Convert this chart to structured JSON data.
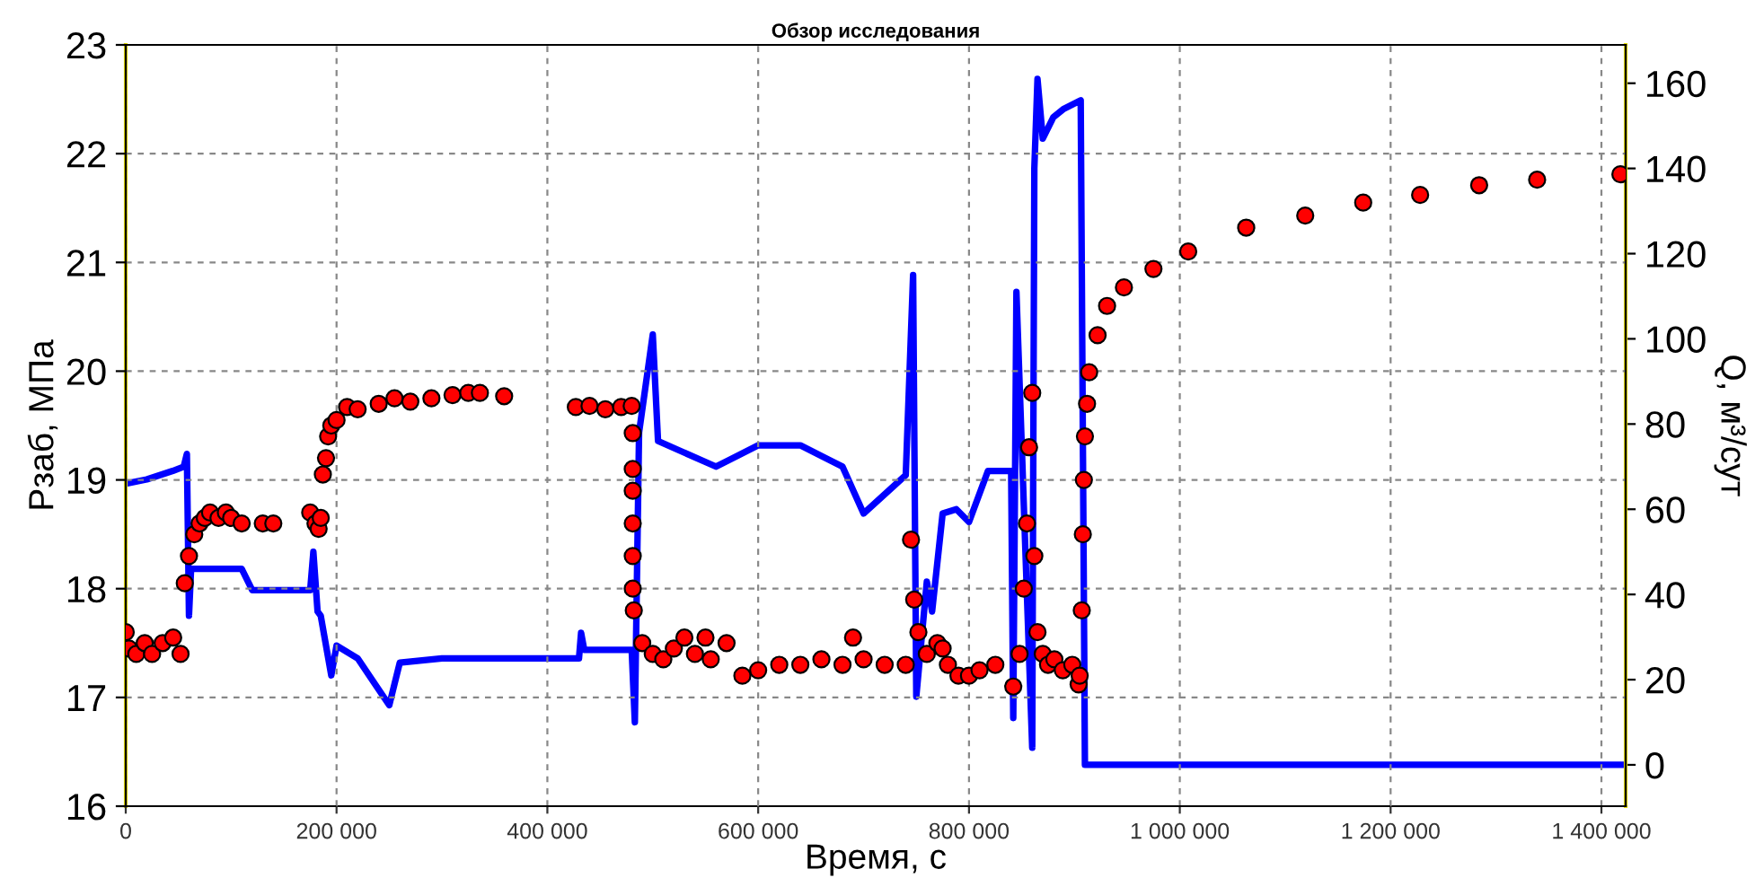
{
  "chart_data": {
    "type": "scatter",
    "title": "Обзор исследования",
    "xlabel": "Время, с",
    "ylabel": "Pзаб, МПа",
    "y2label": "Q, м³/сут",
    "xlim": [
      0,
      1423000
    ],
    "ylim": [
      16,
      23
    ],
    "y2lim": [
      -9.7,
      169
    ],
    "xticks": [
      0,
      {
        "value": 200000,
        "label": "200 000"
      },
      {
        "value": 400000,
        "label": "400 000"
      },
      {
        "value": 600000,
        "label": "600 000"
      },
      {
        "value": 800000,
        "label": "800 000"
      },
      {
        "value": 1000000,
        "label": "1 000 000"
      },
      {
        "value": 1200000,
        "label": "1 200 000"
      },
      {
        "value": 1400000,
        "label": "1 400 000"
      }
    ],
    "yticks": [
      16,
      17,
      18,
      19,
      20,
      21,
      22,
      23
    ],
    "y2ticks": [
      0,
      20,
      40,
      60,
      80,
      100,
      120,
      140,
      160
    ],
    "grid": true,
    "legend": false,
    "series": [
      {
        "axis": "y",
        "color": "#ff0000",
        "marker": "circle",
        "x": [
          0,
          3000,
          10000,
          18000,
          25000,
          35000,
          45000,
          52000,
          56000,
          60000,
          65000,
          70000,
          75000,
          80000,
          88000,
          95000,
          100000,
          110000,
          130000,
          140000,
          175000,
          180000,
          183000,
          185000,
          187000,
          190000,
          192000,
          195000,
          200000,
          210000,
          220000,
          240000,
          255000,
          270000,
          290000,
          310000,
          325000,
          336000,
          359000,
          427000,
          440000,
          455000,
          470000,
          480000,
          481000,
          481000,
          481000,
          481000,
          481000,
          481000,
          482000,
          490000,
          500000,
          510000,
          520000,
          530000,
          540000,
          550000,
          555000,
          570000,
          585000,
          600000,
          620000,
          640000,
          660000,
          680000,
          690000,
          700000,
          720000,
          740000,
          745000,
          748000,
          752000,
          760000,
          770000,
          775000,
          780000,
          790000,
          800000,
          810000,
          825000,
          842000,
          848000,
          852000,
          855000,
          857000,
          860000,
          862000,
          865000,
          870000,
          875000,
          881000,
          889000,
          898000,
          904000,
          905000,
          907000,
          908000,
          909000,
          910000,
          912000,
          914000,
          922000,
          931000,
          947000,
          975000,
          1008000,
          1063000,
          1119000,
          1174000,
          1228000,
          1284000,
          1339000,
          1418000
        ],
        "values": [
          17.6,
          17.45,
          17.4,
          17.5,
          17.4,
          17.5,
          17.55,
          17.4,
          18.05,
          18.3,
          18.5,
          18.6,
          18.65,
          18.7,
          18.65,
          18.7,
          18.65,
          18.6,
          18.6,
          18.6,
          18.7,
          18.6,
          18.55,
          18.65,
          19.05,
          19.2,
          19.4,
          19.5,
          19.55,
          19.67,
          19.65,
          19.7,
          19.75,
          19.72,
          19.75,
          19.78,
          19.8,
          19.8,
          19.77,
          19.67,
          19.68,
          19.65,
          19.67,
          19.68,
          19.43,
          19.1,
          18.9,
          18.6,
          18.3,
          18.0,
          17.8,
          17.5,
          17.4,
          17.35,
          17.45,
          17.55,
          17.4,
          17.55,
          17.35,
          17.5,
          17.2,
          17.25,
          17.3,
          17.3,
          17.35,
          17.3,
          17.55,
          17.35,
          17.3,
          17.3,
          18.45,
          17.9,
          17.6,
          17.4,
          17.5,
          17.45,
          17.3,
          17.2,
          17.2,
          17.25,
          17.3,
          17.1,
          17.4,
          18.0,
          18.6,
          19.3,
          19.8,
          18.3,
          17.6,
          17.4,
          17.3,
          17.35,
          17.25,
          17.3,
          17.12,
          17.2,
          17.8,
          18.5,
          19.0,
          19.4,
          19.7,
          19.99,
          20.33,
          20.6,
          20.77,
          20.94,
          21.1,
          21.32,
          21.43,
          21.55,
          21.62,
          21.71,
          21.76,
          21.81
        ]
      },
      {
        "type": "line",
        "axis": "y2",
        "color": "#0000ff",
        "marker": "none",
        "line_style": "solid",
        "x": [
          0,
          20000,
          44600,
          55000,
          58000,
          60000,
          62000,
          110000,
          120000,
          140000,
          175000,
          178000,
          182000,
          185000,
          195000,
          200000,
          220000,
          250000,
          260000,
          300000,
          430000,
          432000,
          435000,
          480000,
          483000,
          487000,
          500000,
          505000,
          560000,
          600000,
          640000,
          680000,
          700000,
          740000,
          747000,
          750000,
          760000,
          765000,
          775000,
          788000,
          800000,
          818000,
          840000,
          842000,
          845000,
          860000,
          862000,
          865000,
          870000,
          880000,
          890000,
          906000,
          910000,
          1423000
        ],
        "values": [
          66,
          67,
          69,
          70,
          73,
          35,
          46,
          46,
          41,
          41,
          41,
          50,
          36,
          35,
          21,
          28,
          25,
          14,
          24,
          25,
          25,
          31,
          27,
          27,
          10,
          78,
          101,
          76,
          70,
          75,
          75,
          70,
          59,
          68,
          115,
          16,
          43,
          36,
          59,
          60,
          57,
          69,
          69,
          11,
          111,
          4,
          140,
          161,
          147,
          152,
          154,
          156,
          0,
          0
        ]
      }
    ]
  }
}
